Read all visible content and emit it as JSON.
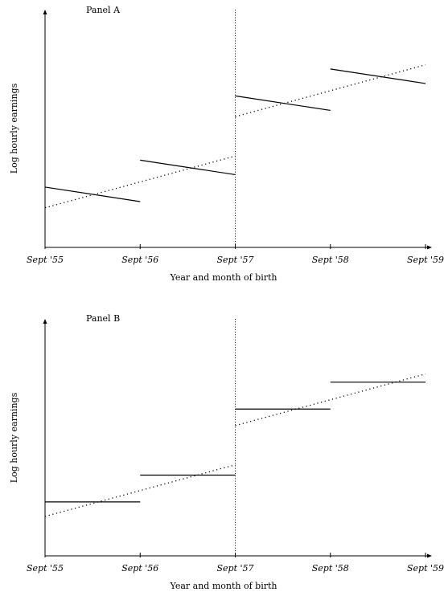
{
  "chart_data": [
    {
      "type": "line",
      "title": "Panel A",
      "xlabel": "Year and month of birth",
      "ylabel": "Log hourly earnings",
      "x_ticks": [
        "Sept '55",
        "Sept '56",
        "Sept '57",
        "Sept '58",
        "Sept '59"
      ],
      "xlim": [
        0,
        4
      ],
      "ylim": [
        0,
        100
      ],
      "cutoff_x": 2,
      "segments": [
        {
          "x": [
            0,
            1
          ],
          "y": [
            26,
            19
          ]
        },
        {
          "x": [
            1,
            2
          ],
          "y": [
            39,
            32
          ]
        },
        {
          "x": [
            2,
            3
          ],
          "y": [
            70,
            63
          ]
        },
        {
          "x": [
            3,
            4
          ],
          "y": [
            83,
            76
          ]
        }
      ],
      "trend_series": [
        {
          "x": [
            0,
            2
          ],
          "y": [
            16,
            41
          ]
        },
        {
          "x": [
            2,
            4
          ],
          "y": [
            60,
            85
          ]
        }
      ]
    },
    {
      "type": "line",
      "title": "Panel B",
      "xlabel": "Year and month of birth",
      "ylabel": "Log hourly earnings",
      "x_ticks": [
        "Sept '55",
        "Sept '56",
        "Sept '57",
        "Sept '58",
        "Sept '59"
      ],
      "xlim": [
        0,
        4
      ],
      "ylim": [
        0,
        100
      ],
      "cutoff_x": 2,
      "segments": [
        {
          "x": [
            0,
            1
          ],
          "y": [
            23,
            23
          ]
        },
        {
          "x": [
            1,
            2
          ],
          "y": [
            36,
            36
          ]
        },
        {
          "x": [
            2,
            3
          ],
          "y": [
            68,
            68
          ]
        },
        {
          "x": [
            3,
            4
          ],
          "y": [
            81,
            81
          ]
        }
      ],
      "trend_series": [
        {
          "x": [
            0,
            2
          ],
          "y": [
            16,
            41
          ]
        },
        {
          "x": [
            2,
            4
          ],
          "y": [
            60,
            85
          ]
        }
      ]
    }
  ]
}
